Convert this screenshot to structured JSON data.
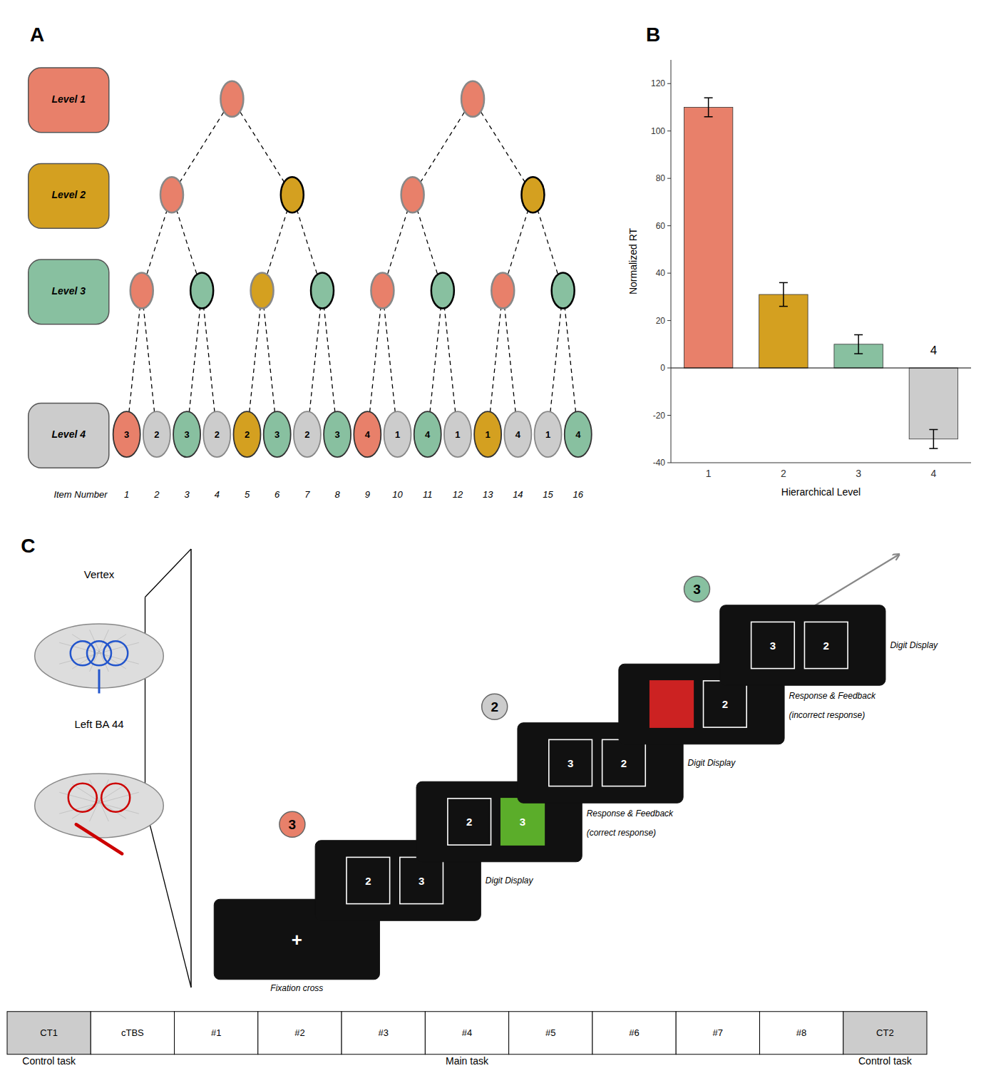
{
  "chart_data": [
    {
      "type": "tree",
      "title": "A",
      "xlabel": "Item Number",
      "categories": [
        1,
        2,
        3,
        4,
        5,
        6,
        7,
        8,
        9,
        10,
        11,
        12,
        13,
        14,
        15,
        16
      ],
      "series": [
        {
          "name": "Level 1",
          "color": "#E8806A",
          "colors": [
            "#E8806A",
            "#E8806A"
          ],
          "border_colors": [
            "#888888",
            "#888888"
          ]
        },
        {
          "name": "Level 2",
          "color": "#D4A020",
          "colors": [
            "#E8806A",
            "#D4A020",
            "#E8806A",
            "#D4A020"
          ],
          "border_colors": [
            "#888888",
            "#000000",
            "#888888",
            "#000000"
          ]
        },
        {
          "name": "Level 3",
          "color": "#88C0A0",
          "colors": [
            "#E8806A",
            "#88C0A0",
            "#D4A020",
            "#88C0A0",
            "#E8806A",
            "#88C0A0",
            "#E8806A",
            "#88C0A0"
          ],
          "border_colors": [
            "#888888",
            "#000000",
            "#888888",
            "#000000",
            "#888888",
            "#000000",
            "#888888",
            "#000000"
          ]
        },
        {
          "name": "Level 4",
          "color": "#CCCCCC",
          "colors": [
            "#E8806A",
            "#CCCCCC",
            "#88C0A0",
            "#CCCCCC",
            "#D4A020",
            "#88C0A0",
            "#CCCCCC",
            "#88C0A0",
            "#E8806A",
            "#CCCCCC",
            "#88C0A0",
            "#CCCCCC",
            "#D4A020",
            "#CCCCCC",
            "#CCCCCC",
            "#88C0A0"
          ],
          "values": [
            3,
            2,
            3,
            2,
            2,
            3,
            2,
            3,
            4,
            1,
            4,
            1,
            1,
            4,
            1,
            4
          ]
        }
      ]
    },
    {
      "type": "bar",
      "title": "B",
      "categories": [
        "1",
        "2",
        "3",
        "4"
      ],
      "values": [
        110,
        31,
        10,
        -30
      ],
      "errors": [
        4,
        5,
        4,
        4
      ],
      "colors": [
        "#E8806A",
        "#D4A020",
        "#88C0A0",
        "#CCCCCC"
      ],
      "xlabel": "Hierarchical Level",
      "ylabel": "Normalized RT",
      "ylim": [
        -40,
        130
      ],
      "yticks": [
        -40,
        -20,
        0,
        20,
        40,
        60,
        80,
        100,
        120
      ],
      "annotations": [
        {
          "text": "4",
          "x": "4",
          "y": 5
        }
      ]
    },
    {
      "type": "diagram",
      "title": "C",
      "stimulation": [
        {
          "name": "Vertex",
          "color": "#2255CC"
        },
        {
          "name": "Left BA 44",
          "color": "#CC0000"
        }
      ],
      "trials": [
        {
          "labels": [
            "Fixation cross"
          ],
          "symbol": "+"
        },
        {
          "labels": [
            "Digit Display"
          ],
          "digits": [
            2,
            3
          ]
        },
        {
          "labels": [
            "Response & Feedback",
            "(correct response)"
          ],
          "digits": [
            2,
            3
          ],
          "colors": [
            null,
            "#5BAD2A"
          ]
        },
        {
          "labels": [
            "Digit Display"
          ],
          "digits": [
            3,
            2
          ]
        },
        {
          "labels": [
            "Response & Feedback",
            "(incorrect response)"
          ],
          "digits": [
            null,
            2
          ],
          "colors": [
            "#CC2222",
            null
          ]
        },
        {
          "labels": [
            "Digit Display"
          ],
          "digits": [
            3,
            2
          ]
        }
      ],
      "indicators": [
        {
          "value": 3,
          "color": "#E8806A"
        },
        {
          "value": 2,
          "color": "#CCCCCC"
        },
        {
          "value": 3,
          "color": "#88C0A0"
        }
      ],
      "sessions": [
        "CT1",
        "cTBS",
        "#1",
        "#2",
        "#3",
        "#4",
        "#5",
        "#6",
        "#7",
        "#8",
        "CT2"
      ],
      "shaded": [
        true,
        false,
        false,
        false,
        false,
        false,
        false,
        false,
        false,
        false,
        true
      ],
      "phase_labels": [
        "Control task",
        "Main task",
        "Control task"
      ]
    }
  ]
}
